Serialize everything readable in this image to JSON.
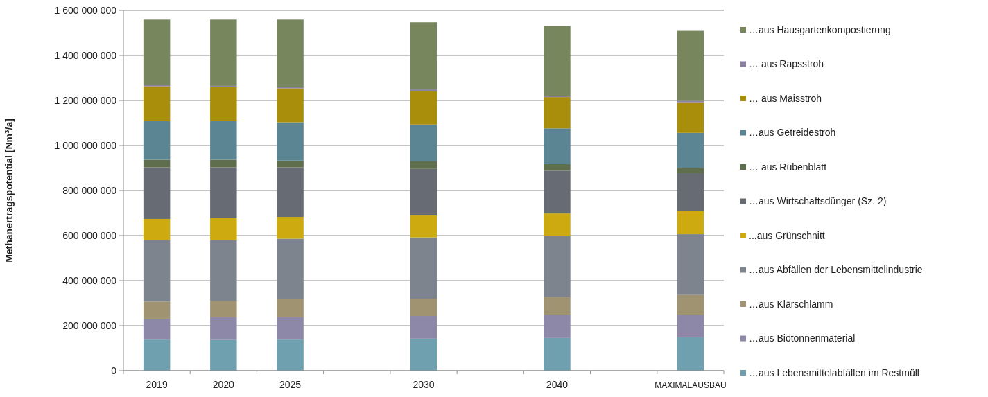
{
  "chart_data": {
    "type": "bar",
    "stacked": true,
    "ylabel": "Methanertragspotential [Nm$^{3}$/a]",
    "categories": [
      "2019",
      "2020",
      "2025",
      null,
      "2030",
      null,
      "2040",
      null,
      "MAXIMALAUSBAU"
    ],
    "ylim": [
      0,
      1600000000
    ],
    "yticks": [
      {
        "value": 0,
        "label": "0"
      },
      {
        "value": 200000000,
        "label": "200 000 000"
      },
      {
        "value": 400000000,
        "label": "400 000 000"
      },
      {
        "value": 600000000,
        "label": "600 000 000"
      },
      {
        "value": 800000000,
        "label": "800 000 000"
      },
      {
        "value": 1000000000,
        "label": "1 000 000 000"
      },
      {
        "value": 1200000000,
        "label": "1 200 000 000"
      },
      {
        "value": 1400000000,
        "label": "1 400 000 000"
      },
      {
        "value": 1600000000,
        "label": "1 600 000 000"
      }
    ],
    "grid": "y",
    "legend": "right",
    "series": [
      {
        "name": "…aus Lebensmittelabfällen im Restmüll",
        "color": "#6fa0b0",
        "values": [
          138000000,
          136000000,
          138000000,
          null,
          142000000,
          null,
          145000000,
          null,
          148000000
        ]
      },
      {
        "name": "…aus Biotonnenmaterial",
        "color": "#8e88a8",
        "values": [
          93000000,
          101000000,
          99000000,
          null,
          101000000,
          null,
          103000000,
          null,
          100000000
        ]
      },
      {
        "name": "…aus Klärschlamm",
        "color": "#a09372",
        "values": [
          76000000,
          73000000,
          80000000,
          null,
          77000000,
          null,
          80000000,
          null,
          88000000
        ]
      },
      {
        "name": "…aus Abfällen der Lebensmittelindustrie",
        "color": "#7e848e",
        "values": [
          273000000,
          270000000,
          269000000,
          null,
          272000000,
          null,
          272000000,
          null,
          270000000
        ]
      },
      {
        "name": "...aus Grünschnitt",
        "color": "#ccaa10",
        "values": [
          94000000,
          97000000,
          97000000,
          null,
          97000000,
          null,
          98000000,
          null,
          102000000
        ]
      },
      {
        "name": "…aus Wirtschaftsdünger (Sz. 2)",
        "color": "#676b74",
        "values": [
          229000000,
          226000000,
          220000000,
          null,
          207000000,
          null,
          190000000,
          null,
          169000000
        ]
      },
      {
        "name": "… aus Rübenblatt",
        "color": "#5f6e4d",
        "values": [
          34000000,
          34000000,
          30000000,
          null,
          35000000,
          null,
          29000000,
          null,
          24000000
        ]
      },
      {
        "name": "…aus Getreidestroh",
        "color": "#5b8592",
        "values": [
          171000000,
          171000000,
          170000000,
          null,
          162000000,
          null,
          159000000,
          null,
          155000000
        ]
      },
      {
        "name": "… aus Maisstroh",
        "color": "#a88e0a",
        "values": [
          155000000,
          152000000,
          151000000,
          null,
          148000000,
          null,
          139000000,
          null,
          136000000
        ]
      },
      {
        "name": "… aus Rapsstroh",
        "color": "#8a7fa0",
        "values": [
          5000000,
          5000000,
          5000000,
          null,
          8000000,
          null,
          5000000,
          null,
          6000000
        ]
      },
      {
        "name": "…aus Hausgartenkompostierung",
        "color": "#77865d",
        "values": [
          291000000,
          294000000,
          300000000,
          null,
          298000000,
          null,
          310000000,
          null,
          311000000
        ]
      }
    ]
  }
}
